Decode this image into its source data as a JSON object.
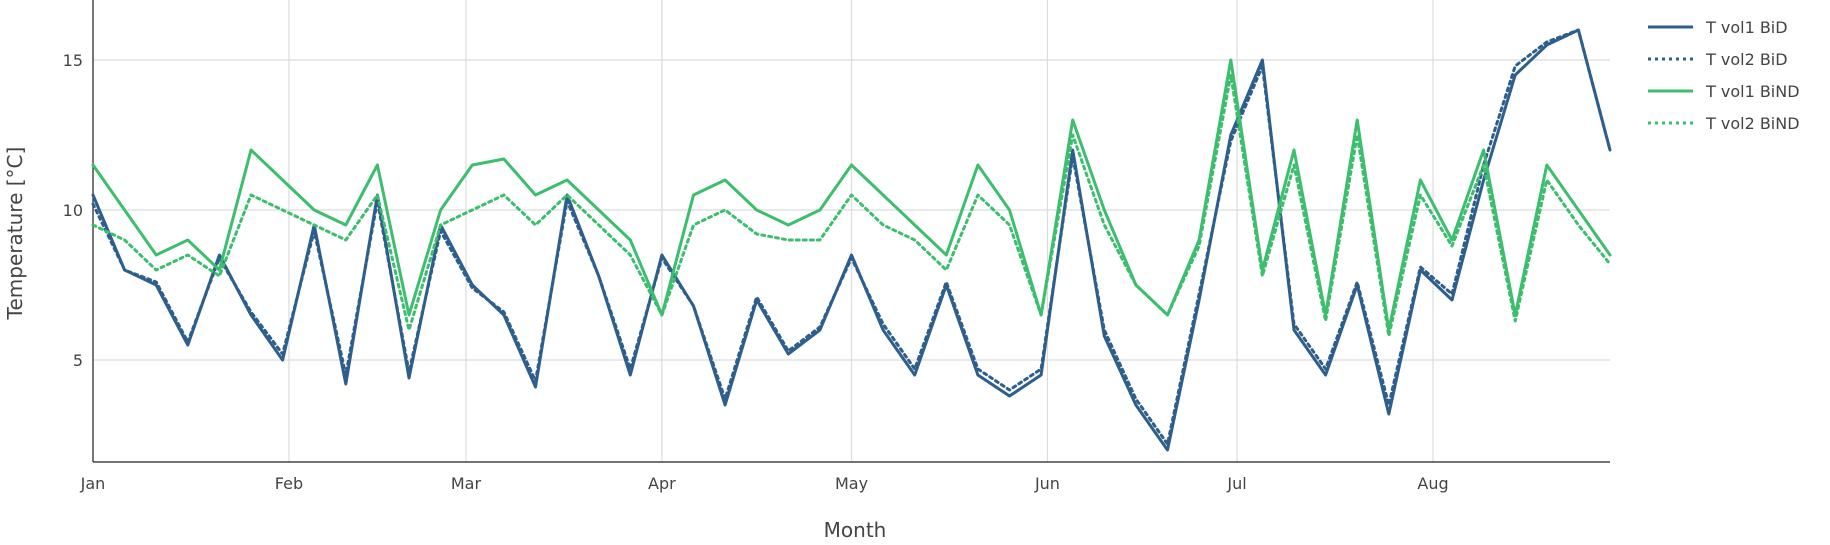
{
  "chart_data": {
    "type": "line",
    "title": "",
    "xlabel": "Month",
    "ylabel": "Temperature [°C]",
    "x_ticks": [
      "Jan",
      "Feb",
      "Mar",
      "Apr",
      "May",
      "Jun",
      "Jul",
      "Aug"
    ],
    "y_ticks": [
      5,
      10,
      15
    ],
    "ylim": [
      1.6,
      17.0
    ],
    "xlim_days": [
      0,
      240
    ],
    "grid": true,
    "legend_placement": "top-right",
    "x_unit": "day of year (0 = Jan 1)",
    "series": [
      {
        "name": "T vol1 BiD",
        "color": "#2E5E8C",
        "dash": "solid",
        "x": [
          0,
          5,
          10,
          15,
          20,
          25,
          30,
          35,
          40,
          45,
          50,
          55,
          60,
          65,
          70,
          75,
          80,
          85,
          90,
          95,
          100,
          105,
          110,
          115,
          120,
          125,
          130,
          135,
          140,
          145,
          150,
          155,
          160,
          165,
          170,
          175,
          180,
          185,
          190,
          195,
          200,
          205,
          210,
          215,
          220,
          225,
          230,
          235,
          240
        ],
        "values": [
          10.5,
          8.0,
          7.5,
          5.5,
          8.5,
          6.5,
          5.0,
          9.5,
          4.2,
          10.5,
          4.4,
          9.5,
          7.5,
          6.5,
          4.1,
          10.5,
          7.8,
          4.5,
          8.5,
          6.8,
          3.5,
          7.0,
          5.2,
          6.0,
          8.5,
          6.0,
          4.5,
          7.5,
          4.5,
          3.8,
          4.5,
          12.0,
          5.8,
          3.5,
          2.0,
          7.0,
          12.5,
          15.0,
          6.0,
          4.5,
          7.5,
          3.2,
          8.0,
          7.0,
          11.0,
          14.5,
          15.5,
          16.0,
          12.0
        ]
      },
      {
        "name": "T vol2 BiD",
        "color": "#2E5E8C",
        "dash": "dotted",
        "x": [
          0,
          5,
          10,
          15,
          20,
          25,
          30,
          35,
          40,
          45,
          50,
          55,
          60,
          65,
          70,
          75,
          80,
          85,
          90,
          95,
          100,
          105,
          110,
          115,
          120,
          125,
          130,
          135,
          140,
          145,
          150,
          155,
          160,
          165,
          170,
          175,
          180,
          185,
          190,
          195,
          200,
          205,
          210,
          215,
          220,
          225,
          230,
          235,
          240
        ],
        "values": [
          10.2,
          8.0,
          7.6,
          5.6,
          8.4,
          6.6,
          5.2,
          9.3,
          4.5,
          10.3,
          4.6,
          9.3,
          7.4,
          6.6,
          4.3,
          10.3,
          7.8,
          4.7,
          8.4,
          6.8,
          3.7,
          7.1,
          5.3,
          6.1,
          8.4,
          6.2,
          4.7,
          7.6,
          4.7,
          4.0,
          4.7,
          11.8,
          6.0,
          3.7,
          2.2,
          7.2,
          12.3,
          14.8,
          6.2,
          4.7,
          7.6,
          3.5,
          8.1,
          7.2,
          11.5,
          14.8,
          15.6,
          16.0,
          12.0
        ]
      },
      {
        "name": "T vol1 BiND",
        "color": "#3DBE6E",
        "dash": "solid",
        "x": [
          0,
          5,
          10,
          15,
          20,
          25,
          30,
          35,
          40,
          45,
          50,
          55,
          60,
          65,
          70,
          75,
          80,
          85,
          90,
          95,
          100,
          105,
          110,
          115,
          120,
          125,
          130,
          135,
          140,
          145,
          150,
          155,
          160,
          165,
          170,
          175,
          180,
          185,
          190,
          195,
          200,
          205,
          210,
          215,
          220,
          225,
          230,
          235,
          240
        ],
        "values": [
          11.5,
          10.0,
          8.5,
          9.0,
          8.0,
          12.0,
          11.0,
          10.0,
          9.5,
          11.5,
          6.5,
          10.0,
          11.5,
          11.7,
          10.5,
          11.0,
          10.0,
          9.0,
          6.5,
          10.5,
          11.0,
          10.0,
          9.5,
          10.0,
          11.5,
          10.5,
          9.5,
          8.5,
          11.5,
          10.0,
          6.5,
          13.0,
          10.0,
          7.5,
          6.5,
          9.0,
          15.0,
          8.0,
          12.0,
          6.5,
          13.0,
          6.0,
          11.0,
          9.0,
          12.0,
          6.5,
          11.5,
          10.0,
          8.5
        ]
      },
      {
        "name": "T vol2 BiND",
        "color": "#3DBE6E",
        "dash": "dotted",
        "x": [
          0,
          5,
          10,
          15,
          20,
          25,
          30,
          35,
          40,
          45,
          50,
          55,
          60,
          65,
          70,
          75,
          80,
          85,
          90,
          95,
          100,
          105,
          110,
          115,
          120,
          125,
          130,
          135,
          140,
          145,
          150,
          155,
          160,
          165,
          170,
          175,
          180,
          185,
          190,
          195,
          200,
          205,
          210,
          215,
          220,
          225,
          230,
          235,
          240
        ],
        "values": [
          9.5,
          9.0,
          8.0,
          8.5,
          7.8,
          10.5,
          10.0,
          9.5,
          9.0,
          10.5,
          6.0,
          9.5,
          10.0,
          10.5,
          9.5,
          10.5,
          9.5,
          8.5,
          6.5,
          9.5,
          10.0,
          9.2,
          9.0,
          9.0,
          10.5,
          9.5,
          9.0,
          8.0,
          10.5,
          9.5,
          6.5,
          12.5,
          9.5,
          7.5,
          6.5,
          8.8,
          14.5,
          7.8,
          11.5,
          6.3,
          12.5,
          5.8,
          10.5,
          8.8,
          11.5,
          6.3,
          11.0,
          9.5,
          8.2
        ]
      }
    ]
  }
}
